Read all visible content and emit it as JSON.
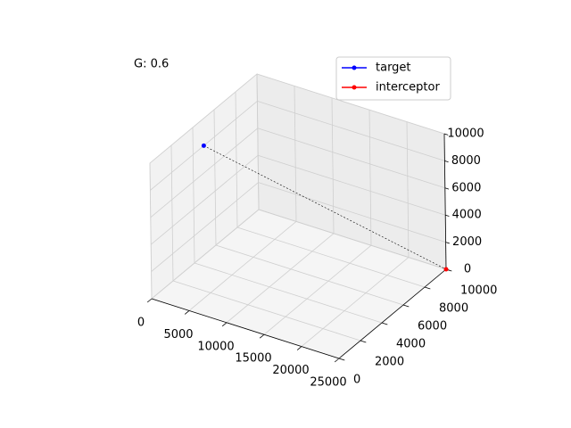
{
  "chart_data": {
    "type": "line3d",
    "annotation": "G: 0.6",
    "series": [
      {
        "name": "target",
        "color": "#0000ff",
        "x": [
          0
        ],
        "y": [
          5000
        ],
        "z": [
          8000
        ]
      },
      {
        "name": "interceptor",
        "color": "#ff0000",
        "x": [
          25000
        ],
        "y": [
          10000
        ],
        "z": [
          0
        ]
      }
    ],
    "xlim": [
      0,
      25000
    ],
    "xticks": [
      0,
      5000,
      10000,
      15000,
      20000,
      25000
    ],
    "ylim": [
      0,
      10000
    ],
    "yticks": [
      0,
      2000,
      4000,
      6000,
      8000,
      10000
    ],
    "zlim": [
      0,
      10000
    ],
    "zticks": [
      0,
      2000,
      4000,
      6000,
      8000,
      10000
    ],
    "grid": true,
    "legend": "upper right"
  }
}
